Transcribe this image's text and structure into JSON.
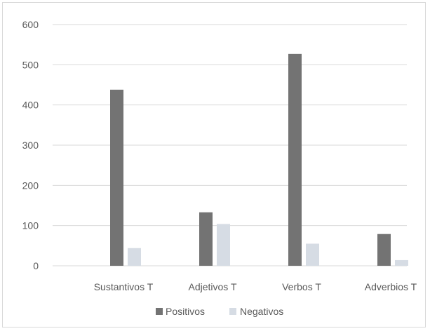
{
  "chart_data": {
    "type": "bar",
    "categories": [
      "Sustantivos T",
      "Adjetivos T",
      "Verbos T",
      "Adverbios T"
    ],
    "series": [
      {
        "name": "Positivos",
        "values": [
          438,
          133,
          527,
          79
        ],
        "color": "#737373"
      },
      {
        "name": "Negativos",
        "values": [
          44,
          104,
          55,
          14
        ],
        "color": "#d6dce4"
      }
    ],
    "yticks": [
      0,
      100,
      200,
      300,
      400,
      500,
      600
    ],
    "ylim": [
      0,
      600
    ],
    "grid": true,
    "gridColor": "#d9d9d9",
    "legend": "bottom-center"
  }
}
